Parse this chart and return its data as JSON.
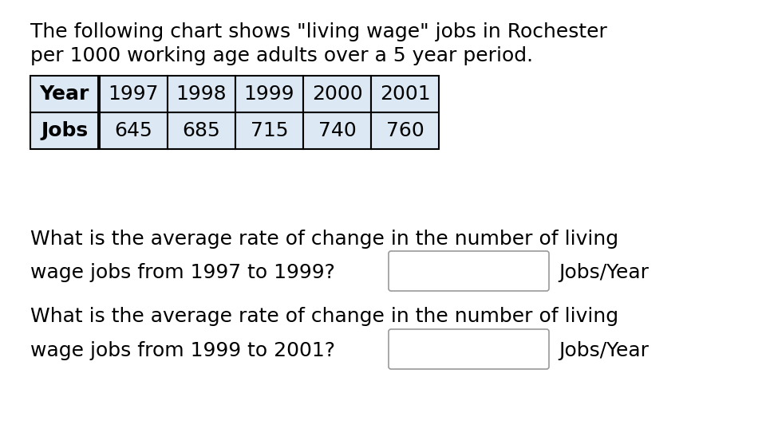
{
  "title_line1": "The following chart shows \"living wage\" jobs in Rochester",
  "title_line2": "per 1000 working age adults over a 5 year period.",
  "table_headers": [
    "Year",
    "1997",
    "1998",
    "1999",
    "2000",
    "2001"
  ],
  "table_row": [
    "Jobs",
    "645",
    "685",
    "715",
    "740",
    "760"
  ],
  "cell_bg": "#dce9f5",
  "table_border": "#000000",
  "question1_line1": "What is the average rate of change in the number of living",
  "question1_line2": "wage jobs from 1997 to 1999?",
  "question1_suffix": "Jobs/Year",
  "question2_line1": "What is the average rate of change in the number of living",
  "question2_line2": "wage jobs from 1999 to 2001?",
  "question2_suffix": "Jobs/Year",
  "bg_color": "#ffffff",
  "text_color": "#000000",
  "font_size": 18,
  "title_font_size": 18,
  "font_family": "DejaVu Sans"
}
